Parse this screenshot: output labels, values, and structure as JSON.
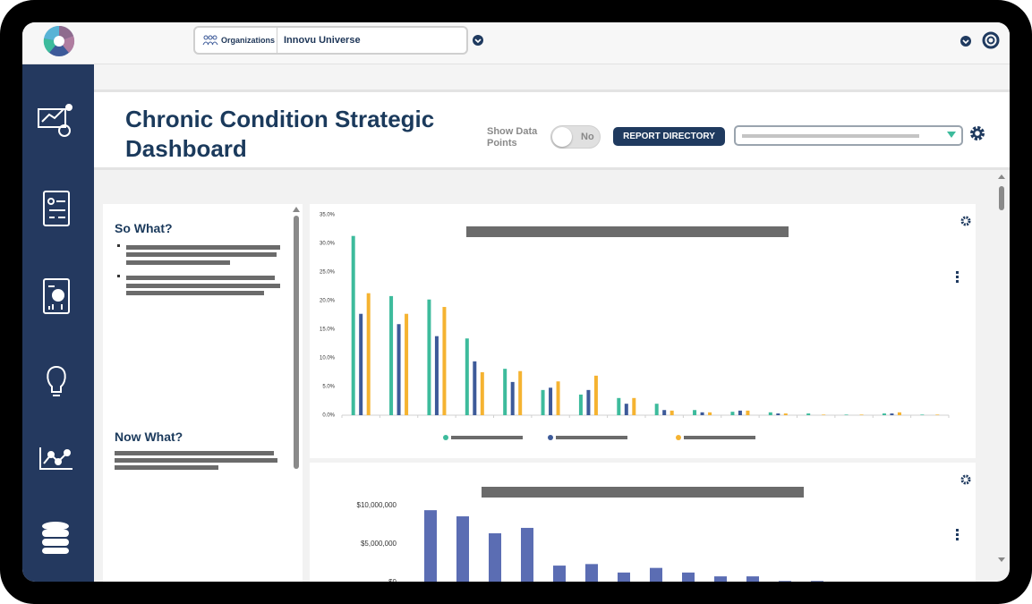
{
  "top_bar": {
    "org_label": "Organizations",
    "org_value": "Innovu Universe"
  },
  "header": {
    "title": "Chronic Condition Strategic Dashboard",
    "show_points_label": "Show Data Points",
    "toggle": "No",
    "report_button": "REPORT DIRECTORY"
  },
  "notes": {
    "so_what": "So What?",
    "now_what": "Now What?"
  },
  "chart_data": [
    {
      "type": "bar",
      "categories": [
        null,
        null,
        null,
        null,
        null,
        null,
        null,
        null,
        null,
        null,
        null,
        null,
        null,
        null,
        null,
        null
      ],
      "series": [
        {
          "color": "#3dbb9c",
          "values": [
            31.3,
            20.8,
            20.2,
            13.4,
            8.1,
            4.4,
            3.6,
            3.0,
            2.0,
            0.9,
            0.6,
            0.5,
            0.3,
            0.1,
            0.3,
            0.1
          ]
        },
        {
          "color": "#3d5a99",
          "values": [
            17.7,
            15.9,
            13.8,
            9.4,
            5.8,
            4.8,
            4.4,
            2.0,
            0.9,
            0.5,
            0.8,
            0.3,
            0,
            0,
            0.3,
            0
          ]
        },
        {
          "color": "#f5b331",
          "values": [
            21.3,
            17.7,
            18.9,
            7.5,
            7.7,
            5.9,
            6.9,
            3.0,
            0.8,
            0.5,
            0.8,
            0.3,
            0.1,
            0.1,
            0.5,
            0.1
          ]
        }
      ],
      "ylim": [
        0,
        35
      ],
      "yticks": [
        {
          "value": 0,
          "label": "0.0%"
        },
        {
          "value": 5,
          "label": "5.0%"
        },
        {
          "value": 10,
          "label": "10.0%"
        },
        {
          "value": 15,
          "label": "15.0%"
        },
        {
          "value": 20,
          "label": "20.0%"
        },
        {
          "value": 25,
          "label": "25.0%"
        },
        {
          "value": 30,
          "label": "30.0%"
        },
        {
          "value": 35,
          "label": "35.0%"
        }
      ],
      "grid": false
    },
    {
      "type": "bar",
      "categories": [
        null,
        null,
        null,
        null,
        null,
        null,
        null,
        null,
        null,
        null,
        null,
        null,
        null
      ],
      "values": [
        9400000,
        8600000,
        6400000,
        7100000,
        2200000,
        2400000,
        1300000,
        1900000,
        1300000,
        800000,
        800000,
        200000,
        200000
      ],
      "color": "#5b6db3",
      "ylim": [
        0,
        10000000
      ],
      "yticks": [
        {
          "value": 0,
          "label": "$0"
        },
        {
          "value": 5000000,
          "label": "$5,000,000"
        },
        {
          "value": 10000000,
          "label": "$10,000,000"
        }
      ],
      "grid": false
    }
  ]
}
